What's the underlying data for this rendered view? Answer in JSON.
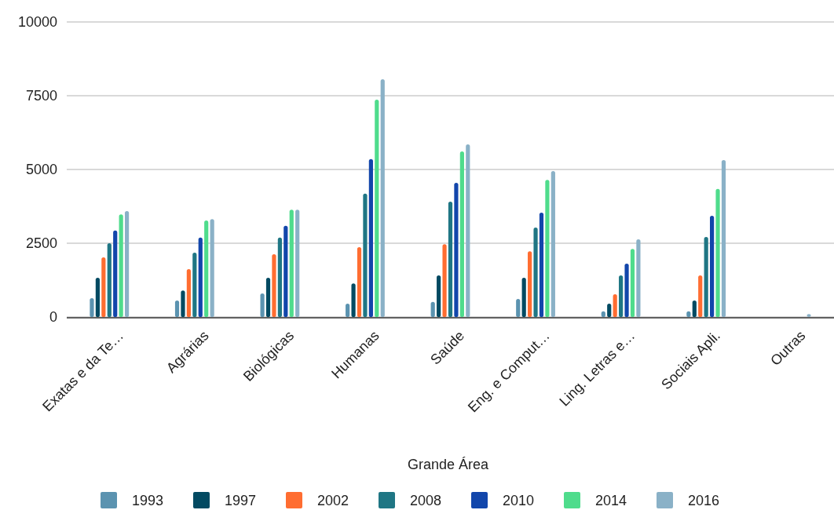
{
  "chart_data": {
    "type": "bar",
    "xlabel": "Grande Área",
    "categories": [
      "Exatas e da Te…",
      "Agrárias",
      "Biológicas",
      "Humanas",
      "Saúde",
      "Eng. e Comput…",
      "Ling. Letras e…",
      "Sociais Apli.",
      "Outras"
    ],
    "series": [
      {
        "name": "1993",
        "color": "#5b93b0",
        "values": [
          640,
          560,
          800,
          450,
          510,
          610,
          190,
          190,
          0
        ]
      },
      {
        "name": "1997",
        "color": "#034a62",
        "values": [
          1330,
          900,
          1330,
          1140,
          1410,
          1330,
          450,
          560,
          0
        ]
      },
      {
        "name": "2002",
        "color": "#ff6d31",
        "values": [
          2020,
          1620,
          2130,
          2370,
          2470,
          2230,
          770,
          1410,
          0
        ]
      },
      {
        "name": "2008",
        "color": "#1f7684",
        "values": [
          2500,
          2180,
          2690,
          4180,
          3910,
          3030,
          1410,
          2710,
          0
        ]
      },
      {
        "name": "2010",
        "color": "#1246ab",
        "values": [
          2930,
          2690,
          3090,
          5350,
          4550,
          3540,
          1810,
          3430,
          0
        ]
      },
      {
        "name": "2014",
        "color": "#4fdc8c",
        "values": [
          3480,
          3270,
          3640,
          7370,
          5610,
          4650,
          2310,
          4340,
          0
        ]
      },
      {
        "name": "2016",
        "color": "#8ab1c7",
        "values": [
          3590,
          3320,
          3640,
          8060,
          5850,
          4950,
          2630,
          5320,
          100
        ]
      }
    ],
    "ylim": [
      0,
      10000
    ],
    "yticks": [
      0,
      2500,
      5000,
      7500,
      10000
    ],
    "grid": "y",
    "legend": "bottom"
  }
}
